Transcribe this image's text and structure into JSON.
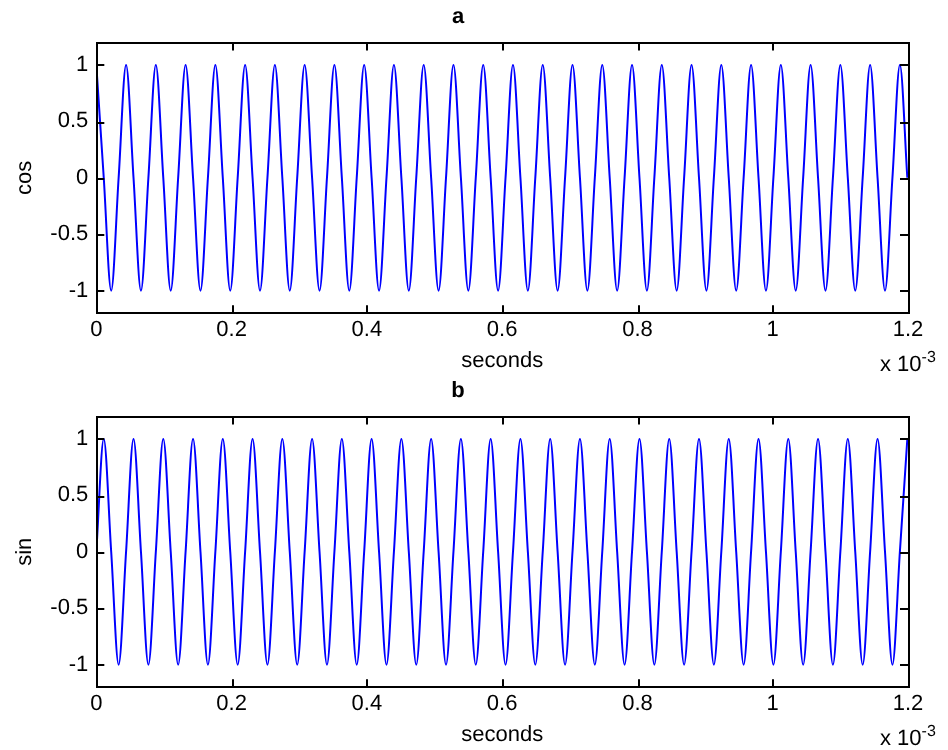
{
  "chart_data": [
    {
      "type": "line",
      "title": "a",
      "xlabel": "seconds",
      "ylabel": "cos",
      "annotations": [
        "x 10$^{-3}$"
      ],
      "x": [
        0,
        0.011,
        0.022,
        0.033,
        0.044,
        0.055,
        0.066,
        0.077,
        0.088,
        0.099,
        0.11,
        0.121,
        0.132,
        0.143,
        0.154,
        0.165,
        0.176,
        0.187,
        0.198,
        0.209,
        0.22,
        0.231,
        0.242,
        0.253,
        0.264,
        0.275,
        0.286,
        0.297,
        0.308,
        0.319,
        0.33,
        0.341,
        0.352,
        0.363,
        0.374,
        0.385,
        0.396,
        0.407,
        0.418,
        0.429,
        0.44,
        0.451,
        0.462,
        0.473,
        0.484,
        0.495,
        0.506,
        0.517,
        0.528,
        0.539,
        0.55,
        0.561,
        0.572,
        0.583,
        0.594,
        0.605,
        0.616,
        0.627,
        0.638,
        0.649,
        0.66,
        0.671,
        0.682,
        0.693,
        0.704,
        0.715,
        0.726,
        0.737,
        0.748,
        0.759,
        0.77,
        0.781,
        0.792,
        0.803,
        0.814,
        0.825,
        0.836,
        0.847,
        0.858,
        0.869,
        0.88,
        0.891,
        0.902,
        0.913,
        0.924,
        0.935,
        0.946,
        0.957,
        0.968,
        0.979,
        0.99,
        1.001,
        1.012,
        1.023,
        1.034,
        1.045,
        1.056,
        1.067,
        1.078,
        1.089,
        1.1,
        1.111,
        1.122,
        1.133,
        1.144,
        1.155,
        1.166,
        1.177,
        1.188,
        1.199
      ],
      "series": [
        {
          "color": "#0000ff",
          "values": [
            1,
            0,
            -1,
            0,
            1,
            0,
            -1,
            0,
            1,
            0,
            -1,
            0,
            1,
            0,
            -1,
            0,
            1,
            0,
            -1,
            0,
            1,
            0,
            -1,
            0,
            1,
            0,
            -1,
            0,
            1,
            0,
            -1,
            0,
            1,
            0,
            -1,
            0,
            1,
            0,
            -1,
            0,
            1,
            0,
            -1,
            0,
            1,
            0,
            -1,
            0,
            1,
            0,
            -1,
            0,
            1,
            0,
            -1,
            0,
            1,
            0,
            -1,
            0,
            1,
            0,
            -1,
            0,
            1,
            0,
            -1,
            0,
            1,
            0,
            -1,
            0,
            1,
            0,
            -1,
            0,
            1,
            0,
            -1,
            0,
            1,
            0,
            -1,
            0,
            1,
            0,
            -1,
            0,
            1,
            0,
            -1,
            0,
            1,
            0,
            -1,
            0,
            1,
            0,
            -1,
            0,
            1,
            0,
            -1,
            0,
            1,
            0,
            -1,
            0,
            1,
            0
          ]
        }
      ],
      "xlim": [
        0,
        1.2
      ],
      "xticks": [
        0,
        0.2,
        0.4,
        0.6,
        0.8,
        1,
        1.2
      ],
      "ylim": [
        -1.2,
        1.2
      ],
      "yticks": [
        -1,
        -0.5,
        0,
        0.5,
        1
      ],
      "grid": false,
      "legend": false,
      "marker": "none",
      "line_style": "solid"
    },
    {
      "type": "line",
      "title": "b",
      "xlabel": "seconds",
      "ylabel": "sin",
      "annotations": [
        "x 10$^{-3}$"
      ],
      "x": [
        0,
        0.011,
        0.022,
        0.033,
        0.044,
        0.055,
        0.066,
        0.077,
        0.088,
        0.099,
        0.11,
        0.121,
        0.132,
        0.143,
        0.154,
        0.165,
        0.176,
        0.187,
        0.198,
        0.209,
        0.22,
        0.231,
        0.242,
        0.253,
        0.264,
        0.275,
        0.286,
        0.297,
        0.308,
        0.319,
        0.33,
        0.341,
        0.352,
        0.363,
        0.374,
        0.385,
        0.396,
        0.407,
        0.418,
        0.429,
        0.44,
        0.451,
        0.462,
        0.473,
        0.484,
        0.495,
        0.506,
        0.517,
        0.528,
        0.539,
        0.55,
        0.561,
        0.572,
        0.583,
        0.594,
        0.605,
        0.616,
        0.627,
        0.638,
        0.649,
        0.66,
        0.671,
        0.682,
        0.693,
        0.704,
        0.715,
        0.726,
        0.737,
        0.748,
        0.759,
        0.77,
        0.781,
        0.792,
        0.803,
        0.814,
        0.825,
        0.836,
        0.847,
        0.858,
        0.869,
        0.88,
        0.891,
        0.902,
        0.913,
        0.924,
        0.935,
        0.946,
        0.957,
        0.968,
        0.979,
        0.99,
        1.001,
        1.012,
        1.023,
        1.034,
        1.045,
        1.056,
        1.067,
        1.078,
        1.089,
        1.1,
        1.111,
        1.122,
        1.133,
        1.144,
        1.155,
        1.166,
        1.177,
        1.188,
        1.199
      ],
      "series": [
        {
          "color": "#0000ff",
          "values": [
            0,
            1,
            0,
            -1,
            0,
            1,
            0,
            -1,
            0,
            1,
            0,
            -1,
            0,
            1,
            0,
            -1,
            0,
            1,
            0,
            -1,
            0,
            1,
            0,
            -1,
            0,
            1,
            0,
            -1,
            0,
            1,
            0,
            -1,
            0,
            1,
            0,
            -1,
            0,
            1,
            0,
            -1,
            0,
            1,
            0,
            -1,
            0,
            1,
            0,
            -1,
            0,
            1,
            0,
            -1,
            0,
            1,
            0,
            -1,
            0,
            1,
            0,
            -1,
            0,
            1,
            0,
            -1,
            0,
            1,
            0,
            -1,
            0,
            1,
            0,
            -1,
            0,
            1,
            0,
            -1,
            0,
            1,
            0,
            -1,
            0,
            1,
            0,
            -1,
            0,
            1,
            0,
            -1,
            0,
            1,
            0,
            -1,
            0,
            1,
            0,
            -1,
            0,
            1,
            0,
            -1,
            0,
            1,
            0,
            -1,
            0,
            1,
            0,
            -1,
            0,
            1
          ]
        }
      ],
      "xlim": [
        0,
        1.2
      ],
      "xticks": [
        0,
        0.2,
        0.4,
        0.6,
        0.8,
        1,
        1.2
      ],
      "ylim": [
        -1.2,
        1.2
      ],
      "yticks": [
        -1,
        -0.5,
        0,
        0.5,
        1
      ],
      "grid": false,
      "legend": false,
      "marker": "none",
      "line_style": "solid"
    }
  ]
}
